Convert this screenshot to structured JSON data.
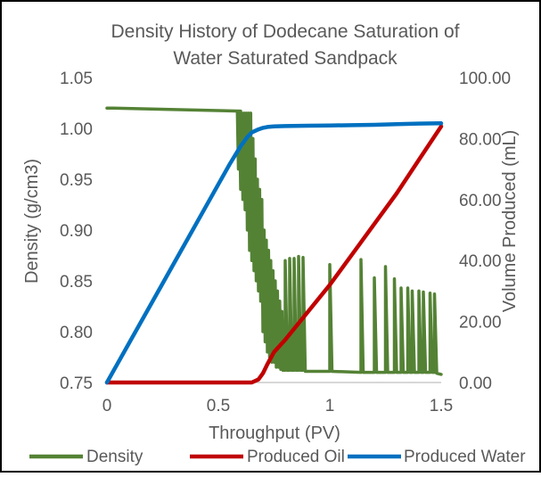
{
  "chart_data": {
    "type": "line",
    "title": "Density History of Dodecane Saturation of Water Saturated Sandpack",
    "title_lines": [
      "Density History of Dodecane Saturation of",
      "Water Saturated Sandpack"
    ],
    "xlabel": "Throughput (PV)",
    "ylabel": "Density (g/cm3)",
    "y2label": "Volume Produced (mL)",
    "xlim": [
      0,
      1.5
    ],
    "ylim": [
      0.75,
      1.05
    ],
    "y2lim": [
      0,
      100
    ],
    "x_ticks": [
      "0",
      "0.5",
      "1",
      "1.5"
    ],
    "x_tick_values": [
      0,
      0.5,
      1,
      1.5
    ],
    "y_ticks": [
      "0.75",
      "0.80",
      "0.85",
      "0.90",
      "0.95",
      "1.00",
      "1.05"
    ],
    "y_tick_values": [
      0.75,
      0.8,
      0.85,
      0.9,
      0.95,
      1.0,
      1.05
    ],
    "y2_ticks": [
      "0.00",
      "20.00",
      "40.00",
      "60.00",
      "80.00",
      "100.00"
    ],
    "y2_tick_values": [
      0,
      20,
      40,
      60,
      80,
      100
    ],
    "grid": false,
    "legend_position": "bottom",
    "series": [
      {
        "name": "Density",
        "axis": "left",
        "color": "#548235",
        "x": [
          0,
          0.02,
          0.6,
          0.585,
          0.59,
          0.595,
          0.6,
          0.605,
          0.61,
          0.615,
          0.62,
          0.625,
          0.63,
          0.635,
          0.64,
          0.645,
          0.65,
          0.655,
          0.66,
          0.665,
          0.67,
          0.675,
          0.68,
          0.685,
          0.69,
          0.695,
          0.7,
          0.705,
          0.71,
          0.715,
          0.72,
          0.725,
          0.73,
          0.735,
          0.74,
          0.745,
          0.75,
          0.755,
          0.76,
          0.765,
          0.77,
          0.775,
          0.78,
          0.785,
          0.79,
          0.8,
          0.8,
          0.81,
          0.82,
          0.82,
          0.83,
          0.84,
          0.84,
          0.85,
          0.86,
          0.86,
          0.87,
          0.88,
          0.88,
          0.89,
          1.0,
          1.0,
          1.01,
          1.14,
          1.14,
          1.15,
          1.2,
          1.2,
          1.21,
          1.25,
          1.25,
          1.26,
          1.29,
          1.29,
          1.3,
          1.32,
          1.32,
          1.33,
          1.35,
          1.35,
          1.36,
          1.37,
          1.37,
          1.38,
          1.4,
          1.4,
          1.41,
          1.42,
          1.42,
          1.43,
          1.45,
          1.45,
          1.46,
          1.47,
          1.47,
          1.48,
          1.5
        ],
        "values": [
          1.02,
          1.02,
          1.017,
          1.017,
          0.96,
          1.015,
          0.94,
          1.015,
          0.93,
          1.015,
          0.92,
          1.015,
          0.9,
          1.015,
          0.88,
          1.015,
          0.87,
          0.99,
          0.86,
          0.97,
          0.85,
          0.95,
          0.84,
          0.94,
          0.83,
          0.93,
          0.8,
          0.9,
          0.79,
          0.89,
          0.78,
          0.88,
          0.775,
          0.87,
          0.77,
          0.86,
          0.77,
          0.85,
          0.765,
          0.84,
          0.765,
          0.83,
          0.763,
          0.82,
          0.762,
          0.762,
          0.87,
          0.762,
          0.762,
          0.872,
          0.762,
          0.762,
          0.872,
          0.762,
          0.762,
          0.874,
          0.762,
          0.762,
          0.873,
          0.761,
          0.761,
          0.866,
          0.761,
          0.76,
          0.871,
          0.76,
          0.76,
          0.853,
          0.76,
          0.76,
          0.864,
          0.76,
          0.76,
          0.852,
          0.76,
          0.76,
          0.843,
          0.76,
          0.76,
          0.843,
          0.76,
          0.76,
          0.84,
          0.76,
          0.76,
          0.84,
          0.76,
          0.76,
          0.839,
          0.76,
          0.76,
          0.838,
          0.76,
          0.76,
          0.837,
          0.759,
          0.758
        ]
      },
      {
        "name": "Produced Oil",
        "axis": "right",
        "color": "#c00000",
        "x": [
          0,
          0.6,
          0.65,
          0.68,
          0.7,
          0.72,
          0.75,
          0.8,
          0.9,
          1.0,
          1.1,
          1.2,
          1.3,
          1.4,
          1.5
        ],
        "values": [
          0,
          0,
          0,
          1,
          3,
          6,
          10,
          14,
          23,
          32,
          42,
          52,
          62,
          73,
          84
        ]
      },
      {
        "name": "Produced Water",
        "axis": "right",
        "color": "#0070c0",
        "x": [
          0,
          0.1,
          0.2,
          0.3,
          0.4,
          0.5,
          0.55,
          0.6,
          0.63,
          0.65,
          0.68,
          0.7,
          0.72,
          0.75,
          0.8,
          0.9,
          1.0,
          1.1,
          1.2,
          1.3,
          1.4,
          1.5
        ],
        "values": [
          0,
          13,
          26,
          39,
          52,
          65,
          71.5,
          77.5,
          80.5,
          82,
          83,
          83.5,
          83.8,
          84,
          84.1,
          84.2,
          84.3,
          84.4,
          84.5,
          84.7,
          84.9,
          85
        ]
      }
    ]
  }
}
